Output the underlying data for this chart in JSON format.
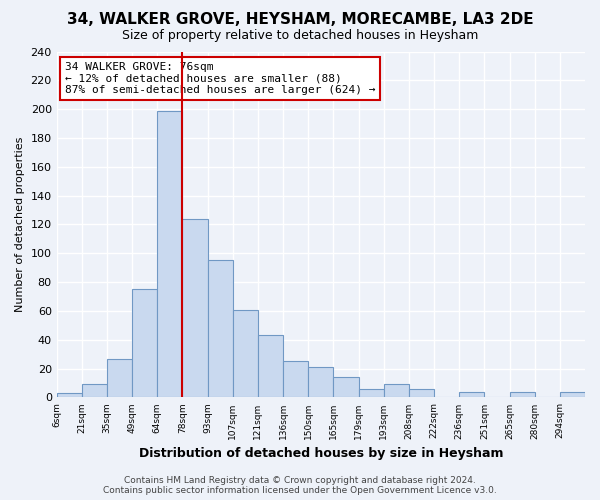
{
  "title": "34, WALKER GROVE, HEYSHAM, MORECAMBE, LA3 2DE",
  "subtitle": "Size of property relative to detached houses in Heysham",
  "xlabel": "Distribution of detached houses by size in Heysham",
  "ylabel": "Number of detached properties",
  "bin_labels": [
    "6sqm",
    "21sqm",
    "35sqm",
    "49sqm",
    "64sqm",
    "78sqm",
    "93sqm",
    "107sqm",
    "121sqm",
    "136sqm",
    "150sqm",
    "165sqm",
    "179sqm",
    "193sqm",
    "208sqm",
    "222sqm",
    "236sqm",
    "251sqm",
    "265sqm",
    "280sqm",
    "294sqm"
  ],
  "bar_values": [
    3,
    9,
    27,
    75,
    199,
    124,
    95,
    61,
    43,
    25,
    21,
    14,
    6,
    9,
    6,
    0,
    4,
    0,
    4,
    0,
    4
  ],
  "ylim": [
    0,
    240
  ],
  "yticks": [
    0,
    20,
    40,
    60,
    80,
    100,
    120,
    140,
    160,
    180,
    200,
    220,
    240
  ],
  "bar_color": "#c9d9ef",
  "bar_edge_color": "#7098c4",
  "vline_x": 5,
  "vline_color": "#cc0000",
  "annotation_title": "34 WALKER GROVE: 76sqm",
  "annotation_line1": "← 12% of detached houses are smaller (88)",
  "annotation_line2": "87% of semi-detached houses are larger (624) →",
  "annotation_box_color": "#ffffff",
  "annotation_box_edge": "#cc0000",
  "footer1": "Contains HM Land Registry data © Crown copyright and database right 2024.",
  "footer2": "Contains public sector information licensed under the Open Government Licence v3.0.",
  "background_color": "#eef2f9",
  "plot_background": "#eef2f9",
  "grid_color": "#ffffff"
}
